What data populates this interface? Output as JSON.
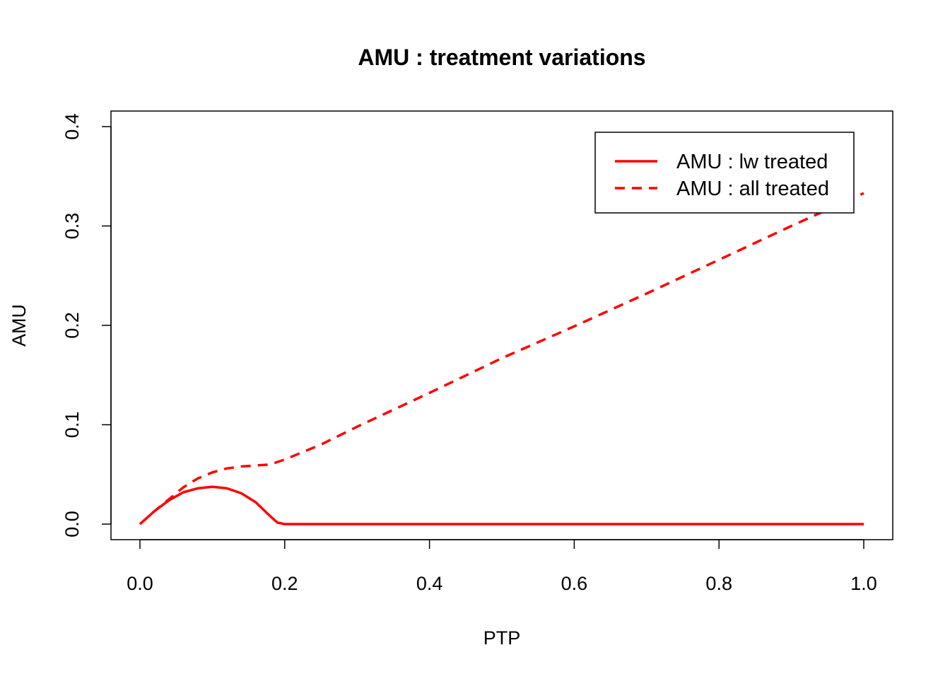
{
  "chart_data": {
    "type": "line",
    "title": "AMU : treatment variations",
    "xlabel": "PTP",
    "ylabel": "AMU",
    "xlim": [
      0.0,
      1.0
    ],
    "ylim": [
      0.0,
      0.4
    ],
    "x_ticks": [
      "0.0",
      "0.2",
      "0.4",
      "0.6",
      "0.8",
      "1.0"
    ],
    "y_ticks": [
      "0.0",
      "0.1",
      "0.2",
      "0.3",
      "0.4"
    ],
    "grid": false,
    "legend_position": "top-right",
    "series": [
      {
        "name": "AMU : lw treated",
        "color": "#ff0000",
        "style": "solid",
        "x": [
          0.0,
          0.02,
          0.04,
          0.06,
          0.08,
          0.1,
          0.12,
          0.14,
          0.16,
          0.18,
          0.19,
          0.2,
          0.3,
          0.4,
          0.5,
          0.6,
          0.7,
          0.8,
          0.9,
          1.0
        ],
        "y": [
          0.0,
          0.013,
          0.024,
          0.032,
          0.036,
          0.0375,
          0.036,
          0.031,
          0.022,
          0.008,
          0.0015,
          0.0,
          0.0,
          0.0,
          0.0,
          0.0,
          0.0,
          0.0,
          0.0,
          0.0
        ]
      },
      {
        "name": "AMU : all treated",
        "color": "#ff0000",
        "style": "dashed",
        "x": [
          0.0,
          0.02,
          0.04,
          0.06,
          0.08,
          0.1,
          0.12,
          0.14,
          0.16,
          0.18,
          0.2,
          0.25,
          0.3,
          0.4,
          0.5,
          0.6,
          0.7,
          0.8,
          0.9,
          1.0
        ],
        "y": [
          0.0,
          0.013,
          0.025,
          0.037,
          0.046,
          0.052,
          0.056,
          0.058,
          0.059,
          0.06,
          0.065,
          0.08,
          0.098,
          0.132,
          0.167,
          0.199,
          0.232,
          0.266,
          0.3,
          0.333
        ]
      }
    ]
  }
}
